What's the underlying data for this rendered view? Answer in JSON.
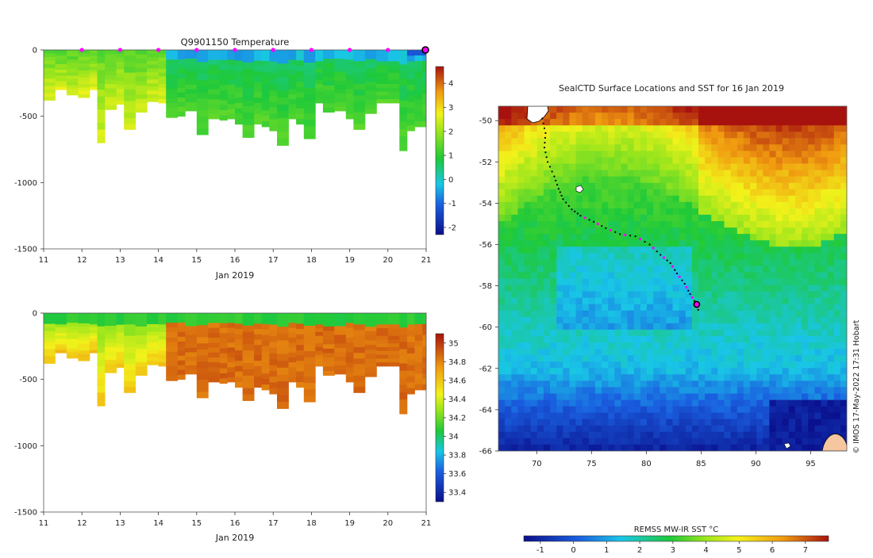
{
  "chart_data": [
    {
      "id": "temperature-section",
      "type": "heatmap",
      "title": "Q9901150  Temperature",
      "xlabel": "Jan 2019",
      "ylabel": "",
      "xlim": [
        11,
        21
      ],
      "ylim": [
        -1500,
        0
      ],
      "x_ticks": [
        11,
        12,
        13,
        14,
        15,
        16,
        17,
        18,
        19,
        20,
        21
      ],
      "y_ticks": [
        0,
        -500,
        -1000,
        -1500
      ],
      "colorbar": {
        "min": -2.3,
        "max": 4.7,
        "ticks": [
          4,
          3,
          2,
          1,
          0,
          -1,
          -2
        ]
      },
      "profile_markers_day": [
        12,
        13,
        14,
        15,
        16,
        17,
        18,
        19,
        20
      ],
      "current_profile_day": 21,
      "profiles": [
        {
          "day": 11.0,
          "depth": 380
        },
        {
          "day": 11.3,
          "depth": 300
        },
        {
          "day": 11.6,
          "depth": 340
        },
        {
          "day": 11.9,
          "depth": 360
        },
        {
          "day": 12.2,
          "depth": 300
        },
        {
          "day": 12.4,
          "depth": 700
        },
        {
          "day": 12.6,
          "depth": 450
        },
        {
          "day": 12.9,
          "depth": 410
        },
        {
          "day": 13.1,
          "depth": 600
        },
        {
          "day": 13.4,
          "depth": 470
        },
        {
          "day": 13.7,
          "depth": 390
        },
        {
          "day": 14.0,
          "depth": 400
        },
        {
          "day": 14.2,
          "depth": 510
        },
        {
          "day": 14.5,
          "depth": 500
        },
        {
          "day": 14.7,
          "depth": 460
        },
        {
          "day": 15.0,
          "depth": 640
        },
        {
          "day": 15.3,
          "depth": 520
        },
        {
          "day": 15.6,
          "depth": 530
        },
        {
          "day": 15.8,
          "depth": 520
        },
        {
          "day": 16.0,
          "depth": 560
        },
        {
          "day": 16.2,
          "depth": 660
        },
        {
          "day": 16.5,
          "depth": 560
        },
        {
          "day": 16.7,
          "depth": 580
        },
        {
          "day": 16.9,
          "depth": 610
        },
        {
          "day": 17.1,
          "depth": 720
        },
        {
          "day": 17.4,
          "depth": 520
        },
        {
          "day": 17.6,
          "depth": 560
        },
        {
          "day": 17.8,
          "depth": 670
        },
        {
          "day": 18.1,
          "depth": 400
        },
        {
          "day": 18.3,
          "depth": 470
        },
        {
          "day": 18.6,
          "depth": 460
        },
        {
          "day": 18.9,
          "depth": 520
        },
        {
          "day": 19.1,
          "depth": 600
        },
        {
          "day": 19.4,
          "depth": 480
        },
        {
          "day": 19.7,
          "depth": 400
        },
        {
          "day": 20.0,
          "depth": 400
        },
        {
          "day": 20.3,
          "depth": 760
        },
        {
          "day": 20.5,
          "depth": 610
        },
        {
          "day": 20.7,
          "depth": 580
        },
        {
          "day": 20.9,
          "depth": 580
        }
      ]
    },
    {
      "id": "salinity-section",
      "type": "heatmap",
      "title": "",
      "xlabel": "Jan 2019",
      "ylabel": "",
      "xlim": [
        11,
        21
      ],
      "ylim": [
        -1500,
        0
      ],
      "x_ticks": [
        11,
        12,
        13,
        14,
        15,
        16,
        17,
        18,
        19,
        20,
        21
      ],
      "y_ticks": [
        0,
        -500,
        -1000,
        -1500
      ],
      "colorbar": {
        "min": 33.3,
        "max": 35.1,
        "ticks": [
          35,
          34.8,
          34.6,
          34.4,
          34.2,
          34,
          33.8,
          33.6,
          33.4
        ]
      }
    },
    {
      "id": "sst-map",
      "type": "heatmap",
      "title": "SealCTD Surface Locations and SST for 16 Jan 2019",
      "xlabel": "",
      "ylabel": "",
      "xlim": [
        66.5,
        98.3
      ],
      "ylim": [
        -66,
        -49.3
      ],
      "x_ticks": [
        70,
        75,
        80,
        85,
        90,
        95
      ],
      "y_ticks": [
        -50,
        -52,
        -54,
        -56,
        -58,
        -60,
        -62,
        -64,
        -66
      ],
      "current_position": {
        "lon": 84.6,
        "lat": -58.9
      },
      "track": [
        {
          "lon": 70.5,
          "lat": -49.9
        },
        {
          "lon": 70.8,
          "lat": -50.6
        },
        {
          "lon": 70.7,
          "lat": -51.3
        },
        {
          "lon": 71.0,
          "lat": -52.0
        },
        {
          "lon": 71.6,
          "lat": -52.7
        },
        {
          "lon": 72.0,
          "lat": -53.3
        },
        {
          "lon": 72.4,
          "lat": -53.8
        },
        {
          "lon": 73.2,
          "lat": -54.3
        },
        {
          "lon": 74.0,
          "lat": -54.6
        },
        {
          "lon": 75.2,
          "lat": -54.9
        },
        {
          "lon": 76.3,
          "lat": -55.2
        },
        {
          "lon": 77.6,
          "lat": -55.5
        },
        {
          "lon": 79.0,
          "lat": -55.6
        },
        {
          "lon": 80.3,
          "lat": -56.0
        },
        {
          "lon": 81.3,
          "lat": -56.5
        },
        {
          "lon": 82.2,
          "lat": -56.9
        },
        {
          "lon": 82.8,
          "lat": -57.4
        },
        {
          "lon": 83.5,
          "lat": -57.9
        },
        {
          "lon": 84.0,
          "lat": -58.4
        },
        {
          "lon": 84.6,
          "lat": -58.9
        },
        {
          "lon": 84.8,
          "lat": -59.3
        }
      ],
      "colorbar": {
        "label": "REMSS MW-IR SST °C",
        "min": -1.5,
        "max": 7.7,
        "ticks": [
          -1,
          0,
          1,
          2,
          3,
          4,
          5,
          6,
          7
        ]
      }
    }
  ],
  "credit": "© IMOS 17-May-2022 17:31 Hobart",
  "colors": {
    "marker": "#ff00ff",
    "track": "#000000",
    "land": "#f6c6a0"
  }
}
